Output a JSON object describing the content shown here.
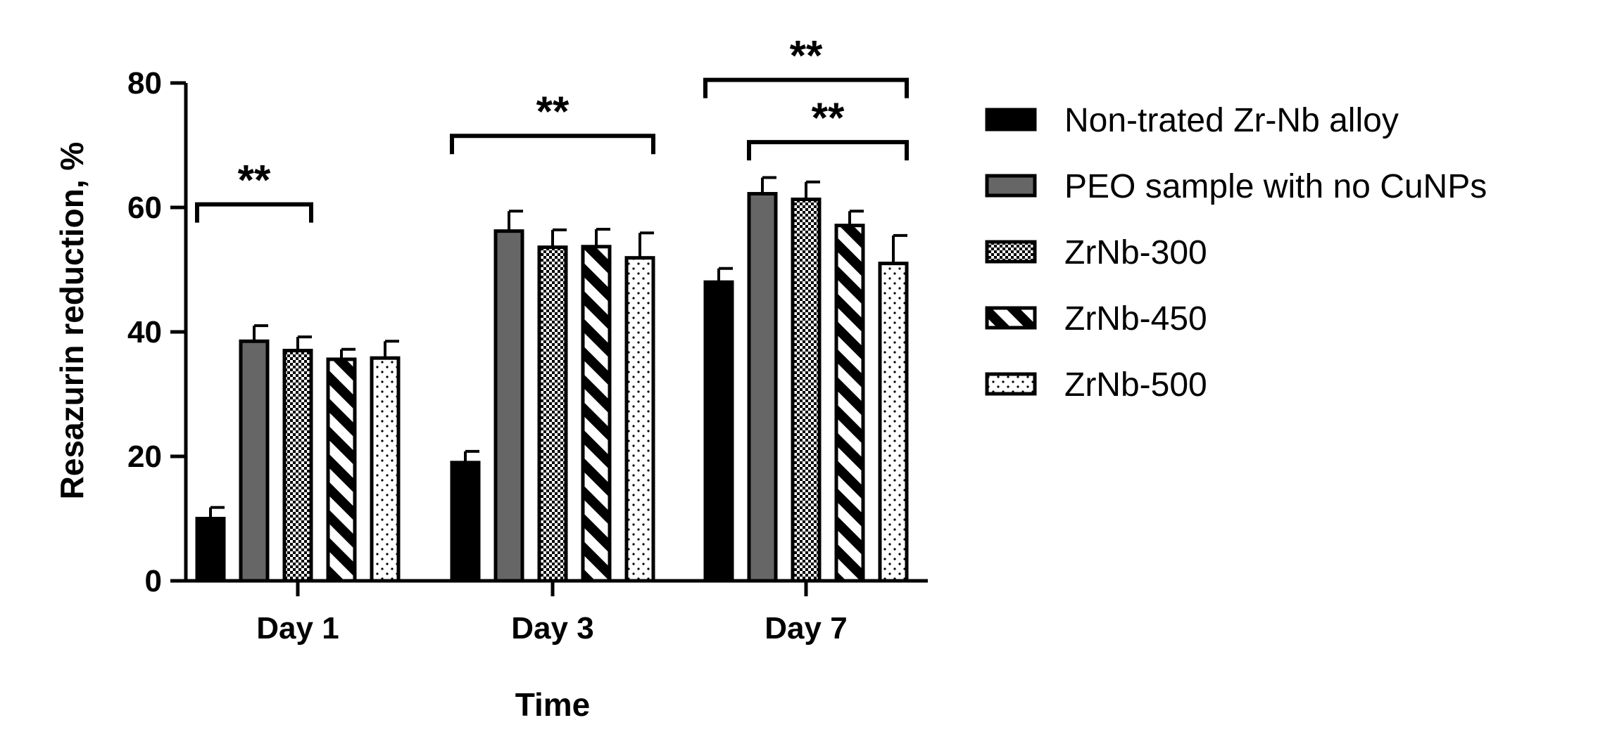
{
  "chart_data": {
    "type": "bar",
    "title": "",
    "xlabel": "Time",
    "ylabel": "Resazurin reduction, %",
    "ylim": [
      0,
      80
    ],
    "yticks": [
      0,
      20,
      40,
      60,
      80
    ],
    "categories": [
      "Day 1",
      "Day 3",
      "Day 7"
    ],
    "legend_position": "right",
    "series": [
      {
        "name": "Non-trated Zr-Nb alloy",
        "pattern": "solid-black",
        "values": [
          10,
          19,
          48
        ],
        "errors": [
          1.8,
          1.8,
          2.2
        ]
      },
      {
        "name": "PEO sample with no CuNPs",
        "pattern": "solid-gray",
        "values": [
          38.5,
          56.2,
          62.2
        ],
        "errors": [
          2.5,
          3.2,
          2.6
        ]
      },
      {
        "name": "ZrNb-300",
        "pattern": "checker",
        "values": [
          37,
          53.6,
          61.3
        ],
        "errors": [
          2.2,
          2.8,
          2.8
        ]
      },
      {
        "name": "ZrNb-450",
        "pattern": "diagonal-stripes",
        "values": [
          35.6,
          53.7,
          57.1
        ],
        "errors": [
          1.6,
          2.8,
          2.3
        ]
      },
      {
        "name": "ZrNb-500",
        "pattern": "dots",
        "values": [
          35.8,
          51.9,
          51
        ],
        "errors": [
          2.7,
          4,
          4.5
        ]
      }
    ],
    "significance": [
      {
        "label": "**",
        "category": "Day 1",
        "from_series": 0,
        "to_series": 2,
        "y": 60.5
      },
      {
        "label": "**",
        "category": "Day 3",
        "from_series": 0,
        "to_series": 4,
        "y": 71.5
      },
      {
        "label": "**",
        "category": "Day 7",
        "from_series": 0,
        "to_series": 4,
        "y": 80.5
      },
      {
        "label": "**",
        "category": "Day 7",
        "from_series": 1,
        "to_series": 5,
        "y": 70.5
      }
    ],
    "colors": {
      "solid-black": "#000000",
      "solid-gray": "#666666",
      "bar-outline": "#000000",
      "background": "#ffffff"
    }
  }
}
